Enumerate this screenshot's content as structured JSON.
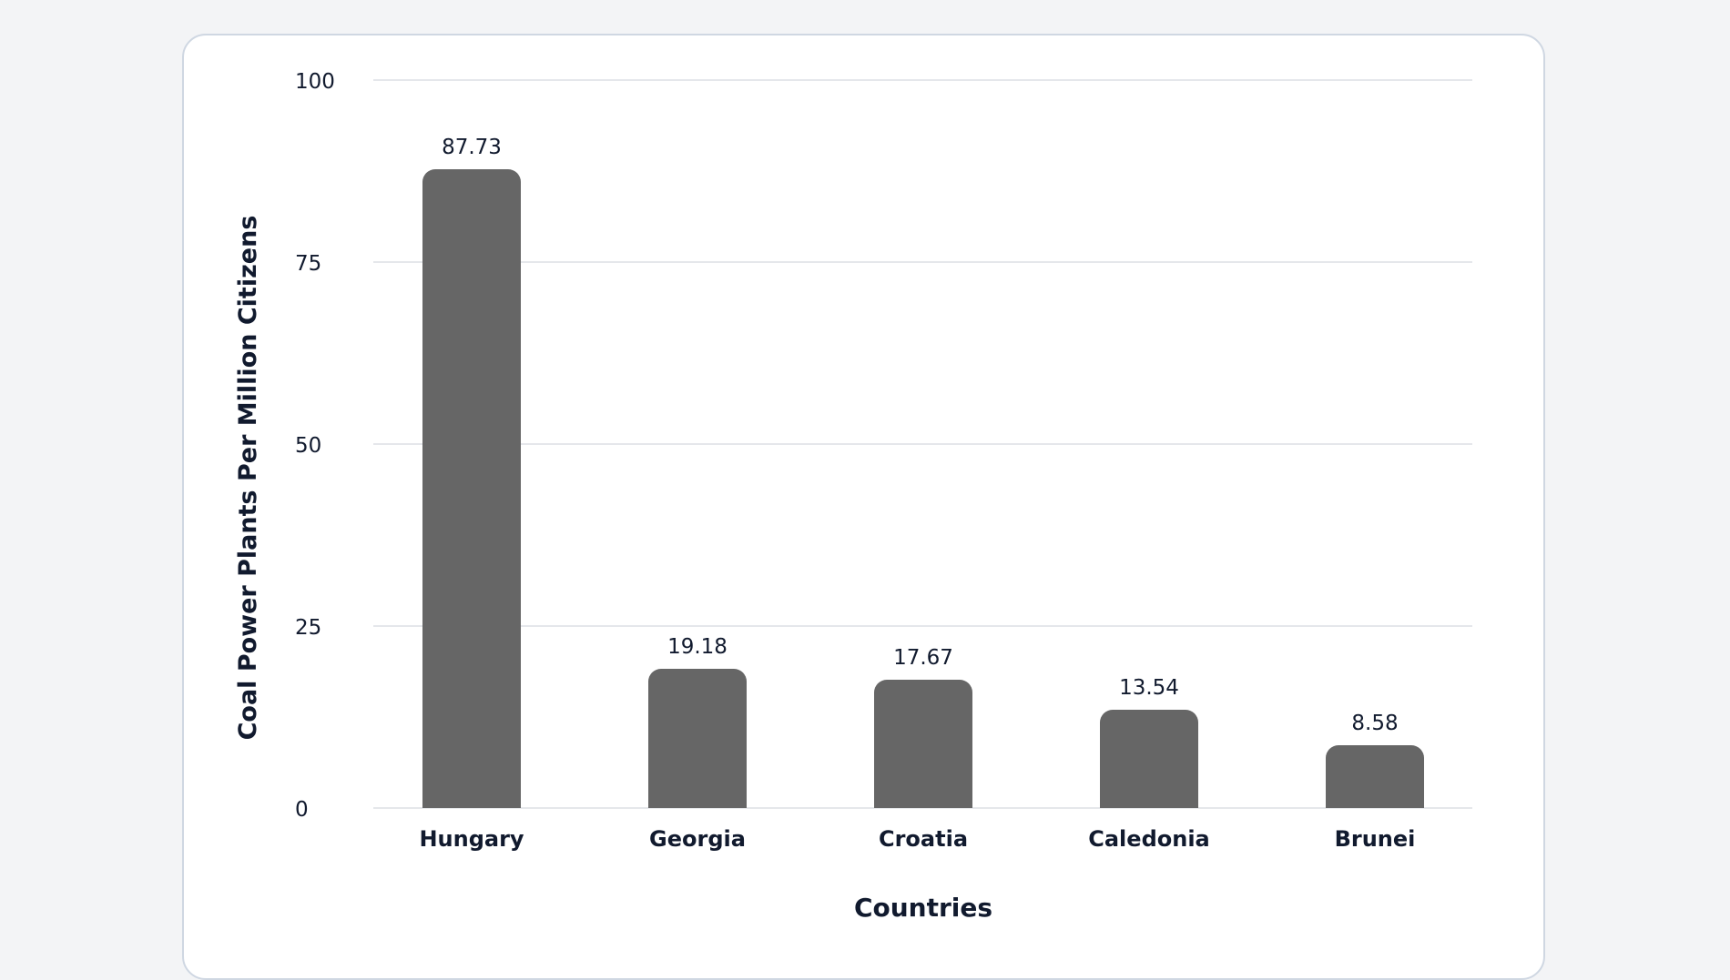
{
  "chart_data": {
    "type": "bar",
    "title": "",
    "xlabel": "Countries",
    "ylabel": "Coal Power Plants Per Million Citizens",
    "categories": [
      "Hungary",
      "Georgia",
      "Croatia",
      "Caledonia",
      "Brunei"
    ],
    "values": [
      87.73,
      19.18,
      17.67,
      13.54,
      8.58
    ],
    "value_labels": [
      "87.73",
      "19.18",
      "17.67",
      "13.54",
      "8.58"
    ],
    "ylim": [
      0,
      100
    ],
    "yticks": [
      "0",
      "25",
      "50",
      "75",
      "100"
    ],
    "grid": true,
    "legend": null,
    "bar_color": "#666666"
  },
  "colors": {
    "background": "#f3f4f6",
    "card": "#ffffff",
    "card_border": "#cfd7e2",
    "gridline": "#e5e7eb",
    "text": "#111a2e",
    "bar": "#666666"
  }
}
